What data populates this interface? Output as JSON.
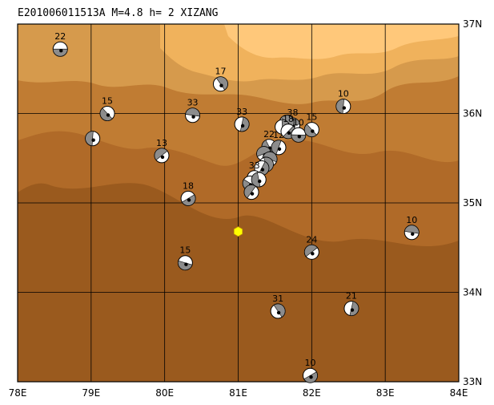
{
  "title": "E201006011513A  M=4.8  h=  2 XIZANG",
  "map": {
    "lon_range": [
      78,
      84
    ],
    "lat_range": [
      33,
      37
    ],
    "lon_ticks": [
      "78E",
      "79E",
      "80E",
      "81E",
      "82E",
      "83E",
      "84E"
    ],
    "lat_ticks": [
      "33N",
      "34N",
      "35N",
      "36N",
      "37N"
    ],
    "grid": true,
    "terrain_colors": [
      "#9a5a1e",
      "#b06a28",
      "#c07c33",
      "#d69a4c",
      "#f0b25c",
      "#ffc87a"
    ]
  },
  "epicenter": {
    "lon": 81.0,
    "lat": 34.68,
    "color": "#ffff00"
  },
  "mechanisms": [
    {
      "lon": 78.58,
      "lat": 36.72,
      "depth": "22"
    },
    {
      "lon": 79.22,
      "lat": 36.0,
      "depth": "15"
    },
    {
      "lon": 79.02,
      "lat": 35.72,
      "depth": ""
    },
    {
      "lon": 79.96,
      "lat": 35.53,
      "depth": "13"
    },
    {
      "lon": 80.38,
      "lat": 35.98,
      "depth": "33"
    },
    {
      "lon": 80.76,
      "lat": 36.33,
      "depth": "17"
    },
    {
      "lon": 81.05,
      "lat": 35.88,
      "depth": "33"
    },
    {
      "lon": 80.32,
      "lat": 35.05,
      "depth": "18"
    },
    {
      "lon": 80.28,
      "lat": 34.33,
      "depth": "15"
    },
    {
      "lon": 81.42,
      "lat": 35.63,
      "depth": "22"
    },
    {
      "lon": 81.55,
      "lat": 35.62,
      "depth": "12"
    },
    {
      "lon": 81.35,
      "lat": 35.55,
      "depth": ""
    },
    {
      "lon": 81.43,
      "lat": 35.49,
      "depth": ""
    },
    {
      "lon": 81.38,
      "lat": 35.43,
      "depth": ""
    },
    {
      "lon": 81.32,
      "lat": 35.39,
      "depth": ""
    },
    {
      "lon": 81.22,
      "lat": 35.28,
      "depth": "33"
    },
    {
      "lon": 81.16,
      "lat": 35.22,
      "depth": ""
    },
    {
      "lon": 81.28,
      "lat": 35.26,
      "depth": ""
    },
    {
      "lon": 81.18,
      "lat": 35.12,
      "depth": ""
    },
    {
      "lon": 81.74,
      "lat": 35.87,
      "depth": "38"
    },
    {
      "lon": 81.66,
      "lat": 35.9,
      "depth": ""
    },
    {
      "lon": 81.6,
      "lat": 35.85,
      "depth": ""
    },
    {
      "lon": 81.68,
      "lat": 35.8,
      "depth": "18"
    },
    {
      "lon": 81.82,
      "lat": 35.76,
      "depth": "10"
    },
    {
      "lon": 82.0,
      "lat": 35.82,
      "depth": "15"
    },
    {
      "lon": 82.43,
      "lat": 36.08,
      "depth": "10"
    },
    {
      "lon": 82.0,
      "lat": 34.45,
      "depth": "24"
    },
    {
      "lon": 83.36,
      "lat": 34.67,
      "depth": "10"
    },
    {
      "lon": 81.54,
      "lat": 33.79,
      "depth": "31"
    },
    {
      "lon": 82.54,
      "lat": 33.82,
      "depth": "21"
    },
    {
      "lon": 81.98,
      "lat": 33.07,
      "depth": "10"
    }
  ]
}
